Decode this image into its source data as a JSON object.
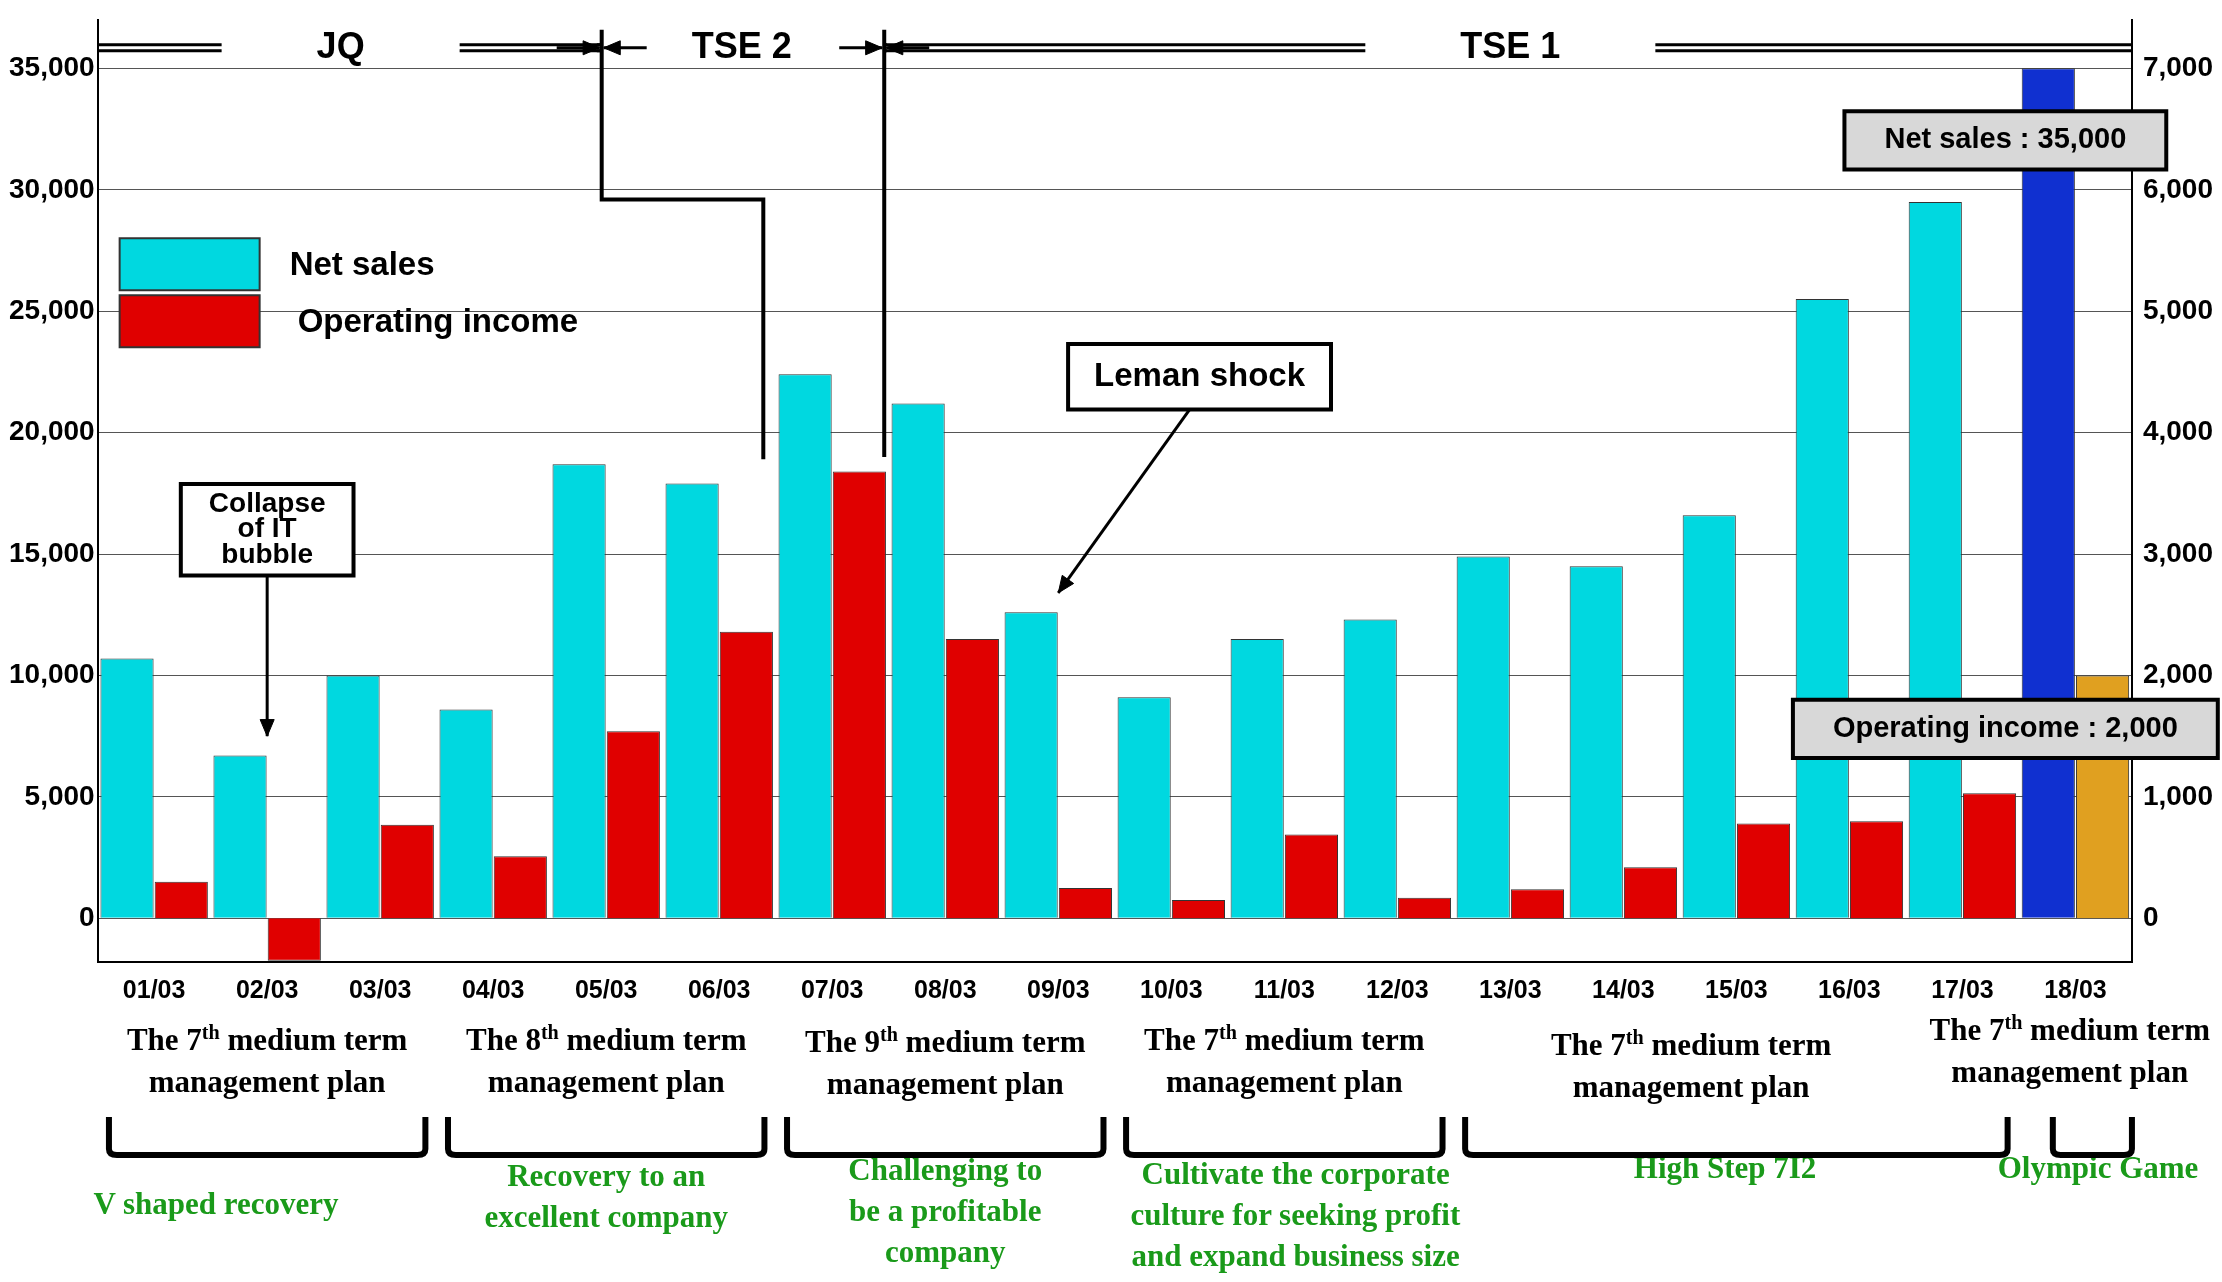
{
  "chart_data": {
    "type": "bar",
    "categories": [
      "01/03",
      "02/03",
      "03/03",
      "04/03",
      "05/03",
      "06/03",
      "07/03",
      "08/03",
      "09/03",
      "10/03",
      "11/03",
      "12/03",
      "13/03",
      "14/03",
      "15/03",
      "16/03",
      "17/03",
      "18/03"
    ],
    "series": [
      {
        "name": "Net sales",
        "color": "#00d8e0",
        "colors": [
          "#00d8e0",
          "#00d8e0",
          "#00d8e0",
          "#00d8e0",
          "#00d8e0",
          "#00d8e0",
          "#00d8e0",
          "#00d8e0",
          "#00d8e0",
          "#00d8e0",
          "#00d8e0",
          "#00d8e0",
          "#00d8e0",
          "#00d8e0",
          "#00d8e0",
          "#00d8e0",
          "#00d8e0",
          "#1030d0"
        ],
        "values": [
          10700,
          6700,
          10000,
          8600,
          18700,
          17900,
          22400,
          21200,
          12600,
          9100,
          11500,
          12300,
          14900,
          14500,
          16600,
          25500,
          29500,
          35000
        ]
      },
      {
        "name": "Operating income",
        "color": "#e00000",
        "axis": "y2",
        "colors": [
          "#e00000",
          "#e00000",
          "#e00000",
          "#e00000",
          "#e00000",
          "#e00000",
          "#e00000",
          "#e00000",
          "#e00000",
          "#e00000",
          "#e00000",
          "#e00000",
          "#e00000",
          "#e00000",
          "#e00000",
          "#e00000",
          "#e00000",
          "#e0a020"
        ],
        "values": [
          300,
          -350,
          770,
          510,
          1540,
          2360,
          3680,
          2300,
          250,
          150,
          690,
          170,
          240,
          420,
          780,
          800,
          1030,
          2000
        ]
      }
    ],
    "ylim": [
      -1800,
      37000
    ],
    "yticks": [
      {
        "value": 0,
        "label": "0"
      },
      {
        "value": 5000,
        "label": "5,000"
      },
      {
        "value": 10000,
        "label": "10,000"
      },
      {
        "value": 15000,
        "label": "15,000"
      },
      {
        "value": 20000,
        "label": "20,000"
      },
      {
        "value": 25000,
        "label": "25,000"
      },
      {
        "value": 30000,
        "label": "30,000"
      },
      {
        "value": 35000,
        "label": "35,000"
      }
    ],
    "y2lim": [
      -360,
      7400
    ],
    "y2ticks": [
      {
        "value": 0,
        "label": "0"
      },
      {
        "value": 1000,
        "label": "1,000"
      },
      {
        "value": 2000,
        "label": "2,000"
      },
      {
        "value": 3000,
        "label": "3,000"
      },
      {
        "value": 4000,
        "label": "4,000"
      },
      {
        "value": 5000,
        "label": "5,000"
      },
      {
        "value": 6000,
        "label": "6,000"
      },
      {
        "value": 7000,
        "label": "7,000"
      }
    ],
    "grid": "y",
    "legend": "top left",
    "annotations": [
      "JQ",
      "TSE 2",
      "TSE 1",
      "Collapse of IT bubble",
      "Leman shock",
      {
        "text": "Net sales : 35,000",
        "x": "18/03",
        "y": 35000
      },
      {
        "text": "Operating income : 2,000",
        "x": "18/03"
      },
      "The 7$^{th}$ medium term management plan",
      "The 8$^{th}$ medium term management plan",
      "The 9$^{th}$ medium term management plan",
      "The 7$^{th}$ medium term management plan",
      "The 7$^{th}$ medium term management plan",
      "The 7$^{th}$ medium term management plan",
      "V shaped recovery",
      "Recovery to an excellent company",
      "Challenging to be a profitable company",
      "Cultivate the corporate culture for seeking profit and expand business size",
      "High Step 7I2",
      "Olympic Game"
    ]
  }
}
